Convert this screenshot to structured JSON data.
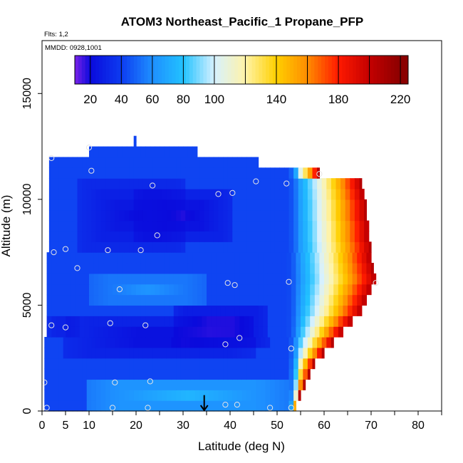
{
  "chart_data": {
    "type": "heatmap",
    "title": "ATOM3 Northeast_Pacific_1 Propane_PFP",
    "flights_label": "Flts: 1,2",
    "dates_label": "MMDD: 0928,1001",
    "xlabel": "Latitude (deg N)",
    "ylabel": "Altitude (m)",
    "xlim": [
      0,
      85
    ],
    "ylim": [
      0,
      17500
    ],
    "x_ticks": [
      {
        "value": 0,
        "label": "0"
      },
      {
        "value": 5,
        "label": "5"
      },
      {
        "value": 10,
        "label": "10"
      },
      {
        "value": 20,
        "label": "20"
      },
      {
        "value": 30,
        "label": "30"
      },
      {
        "value": 40,
        "label": "40"
      },
      {
        "value": 50,
        "label": "50"
      },
      {
        "value": 60,
        "label": "60"
      },
      {
        "value": 70,
        "label": "70"
      },
      {
        "value": 80,
        "label": "80"
      }
    ],
    "x_minor_ticks": [
      0,
      5,
      10,
      15,
      20,
      25,
      30,
      35,
      40,
      45,
      50,
      55,
      60,
      65,
      70,
      75,
      80,
      85
    ],
    "y_ticks": [
      {
        "value": 0,
        "label": "0"
      },
      {
        "value": 5000,
        "label": "5000"
      },
      {
        "value": 10000,
        "label": "10000"
      },
      {
        "value": 15000,
        "label": "15000"
      }
    ],
    "colorbar": {
      "range": [
        10,
        225
      ],
      "tick_labels": [
        "20",
        "40",
        "60",
        "80",
        "100",
        "140",
        "180",
        "220"
      ],
      "tick_values": [
        20,
        40,
        60,
        80,
        100,
        140,
        180,
        220
      ],
      "boundaries": [
        10,
        20,
        40,
        60,
        80,
        100,
        120,
        140,
        160,
        180,
        200,
        220
      ],
      "colors": [
        "#7a22e8",
        "#0a0adc",
        "#0d3cf0",
        "#1e8fff",
        "#22c2ff",
        "#d7f1ff",
        "#fff3a8",
        "#ffd000",
        "#ff8c00",
        "#ff1a00",
        "#c40000",
        "#8b0000"
      ]
    },
    "domain_rows": [
      {
        "y0": 0,
        "y1": 500,
        "x0": 0.5,
        "x1": 54
      },
      {
        "y0": 500,
        "y1": 1000,
        "x0": 0.5,
        "x1": 55
      },
      {
        "y0": 1000,
        "y1": 1500,
        "x0": 0.5,
        "x1": 56
      },
      {
        "y0": 1500,
        "y1": 2000,
        "x0": 0.5,
        "x1": 57
      },
      {
        "y0": 2000,
        "y1": 2500,
        "x0": 0.5,
        "x1": 58
      },
      {
        "y0": 2500,
        "y1": 3000,
        "x0": 0.5,
        "x1": 60
      },
      {
        "y0": 3000,
        "y1": 3500,
        "x0": 0.5,
        "x1": 62
      },
      {
        "y0": 3500,
        "y1": 4000,
        "x0": 1,
        "x1": 64
      },
      {
        "y0": 4000,
        "y1": 4500,
        "x0": 1,
        "x1": 66
      },
      {
        "y0": 4500,
        "y1": 5000,
        "x0": 1,
        "x1": 68
      },
      {
        "y0": 5000,
        "y1": 5500,
        "x0": 1,
        "x1": 69
      },
      {
        "y0": 5500,
        "y1": 6000,
        "x0": 1,
        "x1": 70
      },
      {
        "y0": 6000,
        "y1": 6500,
        "x0": 1,
        "x1": 71
      },
      {
        "y0": 6500,
        "y1": 7000,
        "x0": 1,
        "x1": 70.5
      },
      {
        "y0": 7000,
        "y1": 7500,
        "x0": 1,
        "x1": 70
      },
      {
        "y0": 7500,
        "y1": 8000,
        "x0": 1.5,
        "x1": 70
      },
      {
        "y0": 8000,
        "y1": 8500,
        "x0": 1.5,
        "x1": 69.5
      },
      {
        "y0": 8500,
        "y1": 9000,
        "x0": 1.5,
        "x1": 69.5
      },
      {
        "y0": 9000,
        "y1": 9500,
        "x0": 1.5,
        "x1": 69
      },
      {
        "y0": 9500,
        "y1": 10000,
        "x0": 1.5,
        "x1": 69
      },
      {
        "y0": 10000,
        "y1": 10500,
        "x0": 1.5,
        "x1": 68.5
      },
      {
        "y0": 10500,
        "y1": 11000,
        "x0": 1.5,
        "x1": 68
      },
      {
        "y0": 11000,
        "y1": 11500,
        "x0": 1.5,
        "x1": 59
      },
      {
        "y0": 11500,
        "y1": 12000,
        "x0": 1.5,
        "x1": 46
      },
      {
        "y0": 12000,
        "y1": 12500,
        "x0": 10,
        "x1": 33
      },
      {
        "y0": 12500,
        "y1": 12700,
        "x0": 19.5,
        "x1": 20
      },
      {
        "y0": 12700,
        "y1": 13000,
        "x0": 19.5,
        "x1": 20
      }
    ],
    "field": {
      "background": 42,
      "bands": [
        {
          "lat0": 8,
          "lat1": 30,
          "alt0": 7500,
          "alt1": 11000,
          "value": 22
        },
        {
          "lat0": 20,
          "lat1": 40,
          "alt0": 8000,
          "alt1": 10500,
          "value": 18
        },
        {
          "lat0": 5,
          "lat1": 45,
          "alt0": 2500,
          "alt1": 4500,
          "value": 20
        },
        {
          "lat0": 28,
          "lat1": 48,
          "alt0": 3000,
          "alt1": 5000,
          "value": 16
        },
        {
          "lat0": 10,
          "lat1": 35,
          "alt0": 5000,
          "alt1": 6500,
          "value": 62
        },
        {
          "lat0": 10,
          "lat1": 52,
          "alt0": 0,
          "alt1": 1500,
          "value": 75
        },
        {
          "lat0": 1,
          "lat1": 8,
          "alt0": 3500,
          "alt1": 4500,
          "value": 25
        }
      ],
      "gradient_east": {
        "start_lat": 52,
        "start_value": 45,
        "end_value": 205
      }
    },
    "samples": [
      {
        "lat": 0.5,
        "alt": 1350
      },
      {
        "lat": 1.0,
        "alt": 150
      },
      {
        "lat": 2.0,
        "alt": 11950
      },
      {
        "lat": 2.0,
        "alt": 4050
      },
      {
        "lat": 2.5,
        "alt": 7500
      },
      {
        "lat": 5.0,
        "alt": 3950
      },
      {
        "lat": 5.0,
        "alt": 7650
      },
      {
        "lat": 7.5,
        "alt": 6750
      },
      {
        "lat": 10.0,
        "alt": 12450
      },
      {
        "lat": 10.5,
        "alt": 11350
      },
      {
        "lat": 14.0,
        "alt": 7600
      },
      {
        "lat": 14.5,
        "alt": 4150
      },
      {
        "lat": 15.0,
        "alt": 150
      },
      {
        "lat": 15.5,
        "alt": 1350
      },
      {
        "lat": 16.5,
        "alt": 5750
      },
      {
        "lat": 21.0,
        "alt": 7600
      },
      {
        "lat": 22.0,
        "alt": 4050
      },
      {
        "lat": 22.5,
        "alt": 150
      },
      {
        "lat": 23.0,
        "alt": 1400
      },
      {
        "lat": 23.5,
        "alt": 10650
      },
      {
        "lat": 24.5,
        "alt": 8300
      },
      {
        "lat": 37.5,
        "alt": 10250
      },
      {
        "lat": 39.0,
        "alt": 3150
      },
      {
        "lat": 39.0,
        "alt": 300
      },
      {
        "lat": 39.5,
        "alt": 6050
      },
      {
        "lat": 40.5,
        "alt": 10300
      },
      {
        "lat": 41.0,
        "alt": 5950
      },
      {
        "lat": 41.5,
        "alt": 300
      },
      {
        "lat": 42.0,
        "alt": 3450
      },
      {
        "lat": 45.5,
        "alt": 10850
      },
      {
        "lat": 48.5,
        "alt": 150
      },
      {
        "lat": 52.0,
        "alt": 10750
      },
      {
        "lat": 52.5,
        "alt": 6100
      },
      {
        "lat": 53.0,
        "alt": 2950
      },
      {
        "lat": 53.0,
        "alt": 150
      },
      {
        "lat": 59.0,
        "alt": 11200
      },
      {
        "lat": 71.0,
        "alt": 6050
      }
    ],
    "marker": {
      "lat": 34.5,
      "alt_tip": 0,
      "alt_tail": 750
    }
  }
}
